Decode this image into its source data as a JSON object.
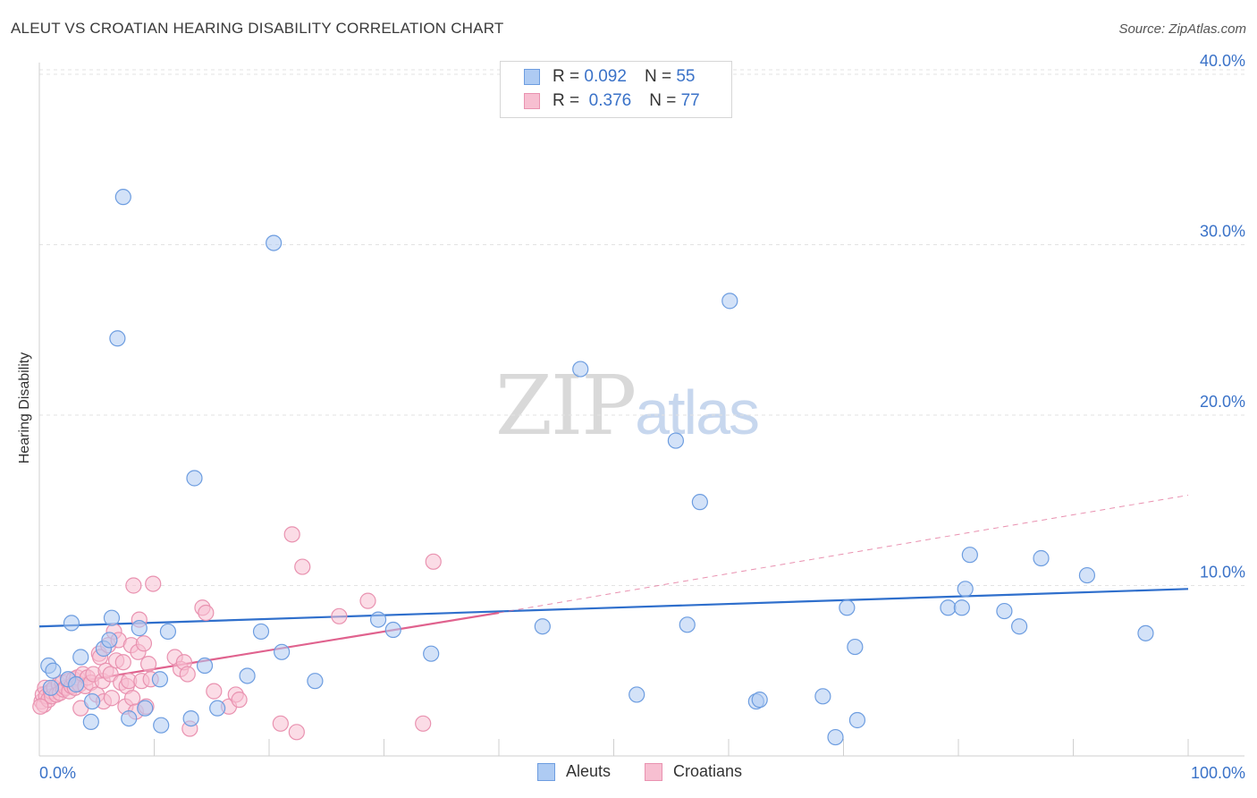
{
  "title": "ALEUT VS CROATIAN HEARING DISABILITY CORRELATION CHART",
  "source": "Source: ZipAtlas.com",
  "watermark": {
    "zip": "ZIP",
    "atlas": "atlas"
  },
  "legend_stats": [
    {
      "r_label": "R =",
      "r_value": "0.092",
      "n_label": "N =",
      "n_value": "55"
    },
    {
      "r_label": "R =",
      "r_value": "0.376",
      "n_label": "N =",
      "n_value": "77"
    }
  ],
  "colors": {
    "aleut_fill": "#aecbf3",
    "aleut_stroke": "#6d9de0",
    "aleut_line": "#2f6fcc",
    "croatian_fill": "#f7bfd1",
    "croatian_stroke": "#e992b0",
    "croatian_line": "#e0628e",
    "tick_label": "#3a72c8"
  },
  "chart_data": {
    "type": "scatter",
    "title": "ALEUT VS CROATIAN HEARING DISABILITY CORRELATION CHART",
    "xlabel": "",
    "ylabel": "Hearing Disability",
    "xlim": [
      0,
      100
    ],
    "ylim": [
      0,
      42
    ],
    "x_tick_labels": [
      "0.0%",
      "100.0%"
    ],
    "y_ticks": [
      10,
      20,
      30,
      40
    ],
    "y_tick_labels": [
      "10.0%",
      "20.0%",
      "30.0%",
      "40.0%"
    ],
    "grid": true,
    "legend_position": "bottom-center",
    "series": [
      {
        "name": "Aleuts",
        "r": 0.092,
        "n": 55,
        "trend": {
          "x0": 0,
          "y0": 7.6,
          "x1": 100,
          "y1": 9.8,
          "style": "solid"
        },
        "points": [
          [
            0.8,
            5.3
          ],
          [
            1.2,
            5.0
          ],
          [
            2.5,
            4.5
          ],
          [
            2.8,
            7.8
          ],
          [
            3.2,
            4.2
          ],
          [
            3.6,
            5.8
          ],
          [
            4.5,
            2.0
          ],
          [
            4.6,
            3.2
          ],
          [
            5.6,
            6.3
          ],
          [
            6.1,
            6.8
          ],
          [
            6.3,
            8.1
          ],
          [
            6.8,
            24.5
          ],
          [
            7.3,
            32.8
          ],
          [
            7.8,
            2.2
          ],
          [
            8.7,
            7.5
          ],
          [
            9.2,
            2.8
          ],
          [
            10.5,
            4.5
          ],
          [
            10.6,
            1.8
          ],
          [
            11.2,
            7.3
          ],
          [
            13.2,
            2.2
          ],
          [
            13.5,
            16.3
          ],
          [
            14.4,
            5.3
          ],
          [
            15.5,
            2.8
          ],
          [
            18.1,
            4.7
          ],
          [
            19.3,
            7.3
          ],
          [
            20.4,
            30.1
          ],
          [
            21.1,
            6.1
          ],
          [
            24.0,
            4.4
          ],
          [
            29.5,
            8.0
          ],
          [
            30.8,
            7.4
          ],
          [
            34.1,
            6.0
          ],
          [
            43.8,
            7.6
          ],
          [
            47.1,
            22.7
          ],
          [
            52.0,
            3.6
          ],
          [
            55.4,
            18.5
          ],
          [
            56.4,
            7.7
          ],
          [
            57.5,
            14.9
          ],
          [
            60.1,
            26.7
          ],
          [
            62.4,
            3.2
          ],
          [
            62.7,
            3.3
          ],
          [
            68.2,
            3.5
          ],
          [
            69.3,
            1.1
          ],
          [
            70.3,
            8.7
          ],
          [
            71.0,
            6.4
          ],
          [
            71.2,
            2.1
          ],
          [
            79.1,
            8.7
          ],
          [
            80.3,
            8.7
          ],
          [
            80.6,
            9.8
          ],
          [
            81.0,
            11.8
          ],
          [
            84.0,
            8.5
          ],
          [
            85.3,
            7.6
          ],
          [
            87.2,
            11.6
          ],
          [
            91.2,
            10.6
          ],
          [
            96.3,
            7.2
          ],
          [
            1.0,
            4.0
          ]
        ]
      },
      {
        "name": "Croatians",
        "r": 0.376,
        "n": 77,
        "trend": {
          "x0": 0,
          "y0": 4.0,
          "x1": 40,
          "y1": 8.4,
          "style": "solid",
          "extension": {
            "x1": 100,
            "y1": 15.3,
            "style": "dashed"
          }
        },
        "points": [
          [
            0.2,
            3.2
          ],
          [
            0.3,
            3.6
          ],
          [
            0.4,
            3.0
          ],
          [
            0.5,
            4.0
          ],
          [
            0.6,
            3.5
          ],
          [
            0.8,
            3.3
          ],
          [
            1.0,
            3.8
          ],
          [
            1.1,
            3.5
          ],
          [
            1.3,
            4.0
          ],
          [
            1.5,
            3.6
          ],
          [
            1.7,
            4.2
          ],
          [
            1.8,
            3.7
          ],
          [
            2.0,
            4.3
          ],
          [
            2.1,
            3.9
          ],
          [
            2.3,
            4.0
          ],
          [
            2.5,
            4.4
          ],
          [
            2.6,
            3.8
          ],
          [
            2.8,
            4.1
          ],
          [
            3.0,
            4.5
          ],
          [
            3.1,
            4.0
          ],
          [
            3.3,
            4.6
          ],
          [
            3.5,
            4.2
          ],
          [
            3.6,
            2.8
          ],
          [
            3.8,
            4.8
          ],
          [
            4.0,
            4.1
          ],
          [
            4.2,
            4.6
          ],
          [
            4.5,
            4.3
          ],
          [
            4.7,
            4.8
          ],
          [
            5.0,
            3.6
          ],
          [
            5.2,
            6.0
          ],
          [
            5.3,
            5.8
          ],
          [
            5.5,
            4.4
          ],
          [
            5.6,
            3.2
          ],
          [
            5.8,
            5.0
          ],
          [
            6.0,
            6.5
          ],
          [
            6.2,
            4.8
          ],
          [
            6.3,
            3.4
          ],
          [
            6.5,
            7.3
          ],
          [
            6.7,
            5.6
          ],
          [
            6.9,
            6.8
          ],
          [
            7.1,
            4.3
          ],
          [
            7.3,
            5.5
          ],
          [
            7.5,
            2.9
          ],
          [
            7.6,
            4.1
          ],
          [
            7.8,
            4.4
          ],
          [
            8.0,
            6.5
          ],
          [
            8.1,
            3.4
          ],
          [
            8.2,
            10.0
          ],
          [
            8.4,
            2.6
          ],
          [
            8.6,
            6.1
          ],
          [
            8.7,
            8.0
          ],
          [
            8.9,
            4.4
          ],
          [
            9.1,
            6.6
          ],
          [
            9.3,
            2.9
          ],
          [
            9.5,
            5.4
          ],
          [
            9.7,
            4.5
          ],
          [
            9.9,
            10.1
          ],
          [
            11.8,
            5.8
          ],
          [
            12.3,
            5.1
          ],
          [
            12.6,
            5.5
          ],
          [
            12.9,
            4.8
          ],
          [
            13.1,
            1.6
          ],
          [
            14.2,
            8.7
          ],
          [
            14.5,
            8.4
          ],
          [
            15.2,
            3.8
          ],
          [
            16.5,
            2.9
          ],
          [
            17.1,
            3.6
          ],
          [
            17.4,
            3.3
          ],
          [
            21.0,
            1.9
          ],
          [
            22.0,
            13.0
          ],
          [
            22.4,
            1.4
          ],
          [
            22.9,
            11.1
          ],
          [
            26.1,
            8.2
          ],
          [
            28.6,
            9.1
          ],
          [
            33.4,
            1.9
          ],
          [
            34.3,
            11.4
          ],
          [
            0.1,
            2.9
          ]
        ]
      }
    ]
  }
}
